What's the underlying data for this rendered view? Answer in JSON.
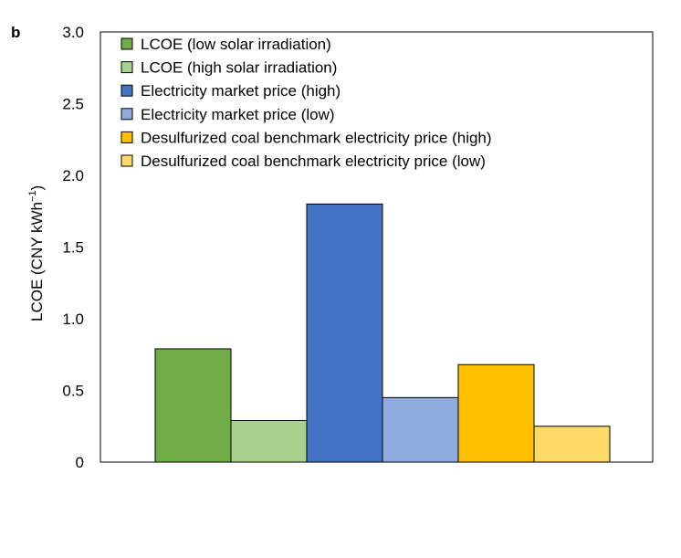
{
  "panel_label": "b",
  "chart_data": {
    "type": "bar",
    "title": "",
    "xlabel": "",
    "ylabel": {
      "main": "LCOE (CNY kWh",
      "sup": "−1",
      "end": ")"
    },
    "ylim": [
      0,
      3.0
    ],
    "yticks": [
      "0",
      "0.5",
      "1.0",
      "1.5",
      "2.0",
      "2.5",
      "3.0"
    ],
    "grid": false,
    "legend_position": "top-left",
    "series": [
      {
        "name": "LCOE (low solar irradiation)",
        "value": 0.79,
        "color": "#70ad47"
      },
      {
        "name": "LCOE (high solar irradiation)",
        "value": 0.29,
        "color": "#a9d18e"
      },
      {
        "name": "Electricity market price (high)",
        "value": 1.8,
        "color": "#4472c4"
      },
      {
        "name": "Electricity market price (low)",
        "value": 0.45,
        "color": "#8faadc"
      },
      {
        "name": "Desulfurized coal benchmark electricity price (high)",
        "value": 0.68,
        "color": "#ffc000"
      },
      {
        "name": "Desulfurized coal benchmark electricity price (low)",
        "value": 0.25,
        "color": "#ffd966"
      }
    ]
  }
}
